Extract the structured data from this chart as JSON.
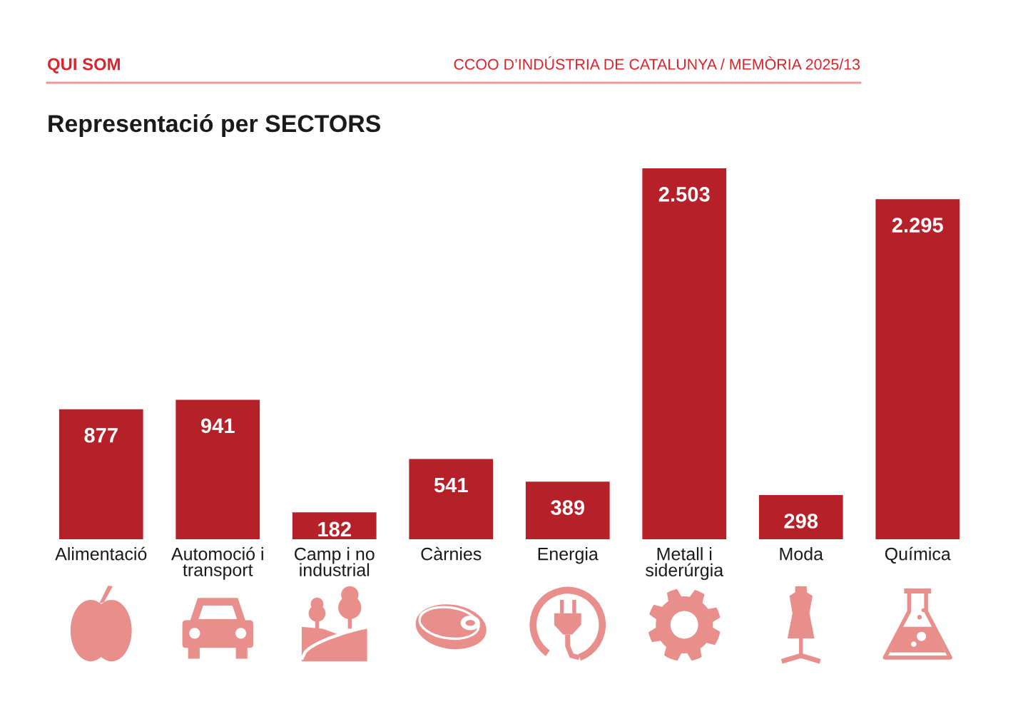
{
  "chart_data": {
    "type": "bar",
    "title": "Representació per SECTORS",
    "annotations": [
      "QUI SOM",
      "CCOO D’INDÚSTRIA DE CATALUNYA / MEMÒRIA 2025/13"
    ],
    "categories": [
      "Alimentació",
      "Automoció i transport",
      "Camp i no industrial",
      "Càrnies",
      "Energia",
      "Metall i siderúrgia",
      "Moda",
      "Química"
    ],
    "values": [
      877,
      941,
      182,
      541,
      389,
      2503,
      298,
      2295
    ],
    "value_labels": [
      "877",
      "941",
      "182",
      "541",
      "389",
      "2.503",
      "298",
      "2.295"
    ],
    "color": "#b52029"
  }
}
